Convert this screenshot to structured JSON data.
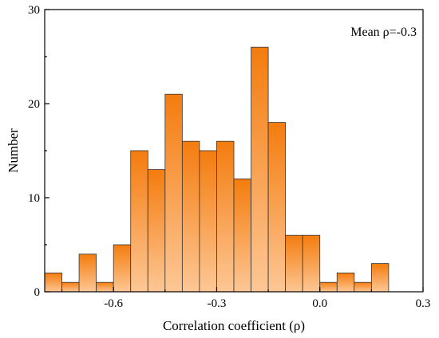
{
  "chart_data": {
    "type": "bar",
    "title": "",
    "xlabel": "Correlation coefficient (ρ)",
    "ylabel": "Number",
    "annotation": "Mean ρ=-0.3",
    "xlim": [
      -0.8,
      0.3
    ],
    "ylim": [
      0,
      30
    ],
    "bin_width": 0.05,
    "bin_starts": [
      -0.8,
      -0.75,
      -0.7,
      -0.65,
      -0.6,
      -0.55,
      -0.5,
      -0.45,
      -0.4,
      -0.35,
      -0.3,
      -0.25,
      -0.2,
      -0.15,
      -0.1,
      -0.05,
      0.0,
      0.05,
      0.1,
      0.15
    ],
    "values": [
      2,
      1,
      4,
      1,
      5,
      15,
      13,
      21,
      16,
      15,
      16,
      12,
      26,
      18,
      6,
      6,
      1,
      2,
      1,
      3
    ],
    "x_ticks": [
      -0.6,
      -0.3,
      0.0,
      0.3
    ],
    "x_tick_labels": [
      "-0.6",
      "-0.3",
      "0.0",
      "0.3"
    ],
    "y_ticks": [
      0,
      10,
      20,
      30
    ],
    "y_tick_labels": [
      "0",
      "10",
      "20",
      "30"
    ],
    "bar_color_top": "#f47c0e",
    "bar_color_bottom": "#fdc795",
    "grid": false
  }
}
